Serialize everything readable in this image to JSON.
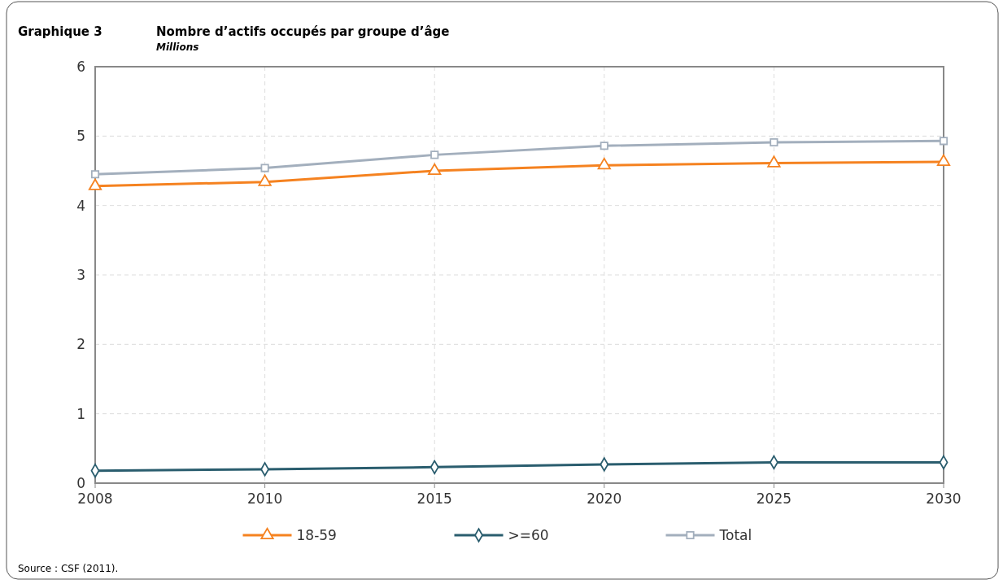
{
  "chart_data": {
    "type": "line",
    "title": "Nombre d’actifs occupés par groupe d’âge",
    "subtitle": "Millions",
    "annotations": [
      "Graphique 3",
      "Source : CSF (2011)."
    ],
    "categories": [
      "2008",
      "2010",
      "2015",
      "2020",
      "2025",
      "2030"
    ],
    "series": [
      {
        "name": "18-59",
        "color": "#f58220",
        "marker": "triangle",
        "values": [
          4.28,
          4.34,
          4.5,
          4.58,
          4.61,
          4.63
        ]
      },
      {
        "name": ">=60",
        "color": "#2a5d6e",
        "marker": "diamond",
        "values": [
          0.18,
          0.2,
          0.23,
          0.27,
          0.3,
          0.3
        ]
      },
      {
        "name": "Total",
        "color": "#a3afbd",
        "marker": "square",
        "values": [
          4.45,
          4.54,
          4.73,
          4.86,
          4.91,
          4.93
        ]
      }
    ],
    "ylim": [
      0,
      6
    ],
    "yticks": [
      0,
      1,
      2,
      3,
      4,
      5,
      6
    ],
    "grid": true,
    "legend": "bottom",
    "line_style": "solid"
  }
}
